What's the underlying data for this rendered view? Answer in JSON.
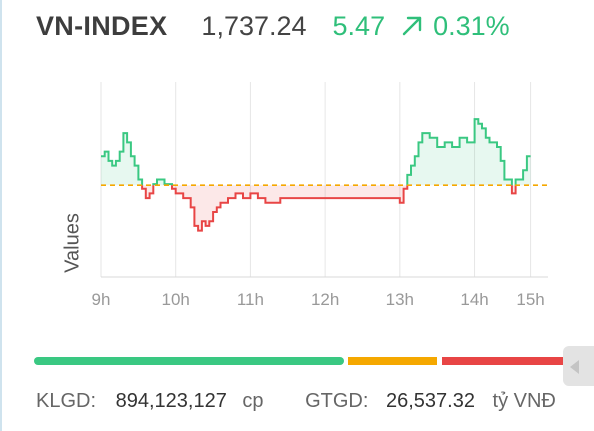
{
  "header": {
    "index_name": "VN-INDEX",
    "value": "1,737.24",
    "change": "5.47",
    "change_pct": "0.31%",
    "direction_icon": "arrow-up-right-icon",
    "up_color": "#2fbf7a"
  },
  "chart_data": {
    "type": "line",
    "ylabel": "Values",
    "xlabel": "",
    "x_ticks": [
      "9h",
      "10h",
      "11h",
      "12h",
      "13h",
      "14h",
      "15h"
    ],
    "x_tick_hours": [
      9,
      10,
      11,
      12,
      13,
      14,
      14.75
    ],
    "reference_value": 1731.77,
    "reference_line": "dashed",
    "reference_color": "#f5a800",
    "up_color": "#3ac882",
    "down_color": "#e84545",
    "y_range": [
      1712,
      1754
    ],
    "grid": "vertical",
    "series": [
      {
        "x": [
          9.0,
          9.05,
          9.1,
          9.15,
          9.2,
          9.25,
          9.3,
          9.35,
          9.4,
          9.45,
          9.5,
          9.55,
          9.6,
          9.65,
          9.7,
          9.75,
          9.8,
          9.85,
          9.9,
          9.95,
          10.0,
          10.1,
          10.2,
          10.25,
          10.3,
          10.35,
          10.4,
          10.45,
          10.5,
          10.55,
          10.6,
          10.7,
          10.8,
          10.9,
          11.0,
          11.1,
          11.2,
          11.3,
          11.4,
          11.5,
          11.6,
          11.7,
          11.8,
          11.9,
          11.98,
          13.0,
          13.05,
          13.1,
          13.15,
          13.2,
          13.25,
          13.3,
          13.35,
          13.4,
          13.45,
          13.5,
          13.55,
          13.6,
          13.7,
          13.8,
          13.9,
          14.0,
          14.05,
          14.1,
          14.15,
          14.2,
          14.3,
          14.35,
          14.4,
          14.45,
          14.5,
          14.55,
          14.6,
          14.65,
          14.7,
          14.75
        ],
        "y": [
          1738,
          1739,
          1737,
          1736,
          1737,
          1739,
          1743,
          1741,
          1738,
          1736,
          1733,
          1731,
          1729,
          1730,
          1732,
          1733,
          1733,
          1732,
          1732,
          1731,
          1730,
          1729,
          1727,
          1723,
          1722,
          1724,
          1723,
          1724,
          1726,
          1727,
          1728,
          1729,
          1730,
          1729,
          1730,
          1729,
          1728,
          1728,
          1729,
          1729,
          1729,
          1729,
          1729,
          1729,
          1729,
          1728,
          1731,
          1734,
          1736,
          1738,
          1741,
          1743,
          1743,
          1742,
          1742,
          1740,
          1740,
          1741,
          1740,
          1742,
          1741,
          1746,
          1745,
          1744,
          1742,
          1741,
          1740,
          1737,
          1733,
          1733,
          1730,
          1733,
          1733,
          1735,
          1738,
          1738
        ]
      }
    ]
  },
  "breadth_bar": {
    "up_color": "#3ac882",
    "unchanged_color": "#f5a800",
    "down_color": "#e84545"
  },
  "footer": {
    "klgd_label": "KLGD:",
    "klgd_value": "894,123,127",
    "klgd_unit": "cp",
    "gtgd_label": "GTGD:",
    "gtgd_value": "26,537.32",
    "gtgd_unit": "tỷ VNĐ"
  }
}
